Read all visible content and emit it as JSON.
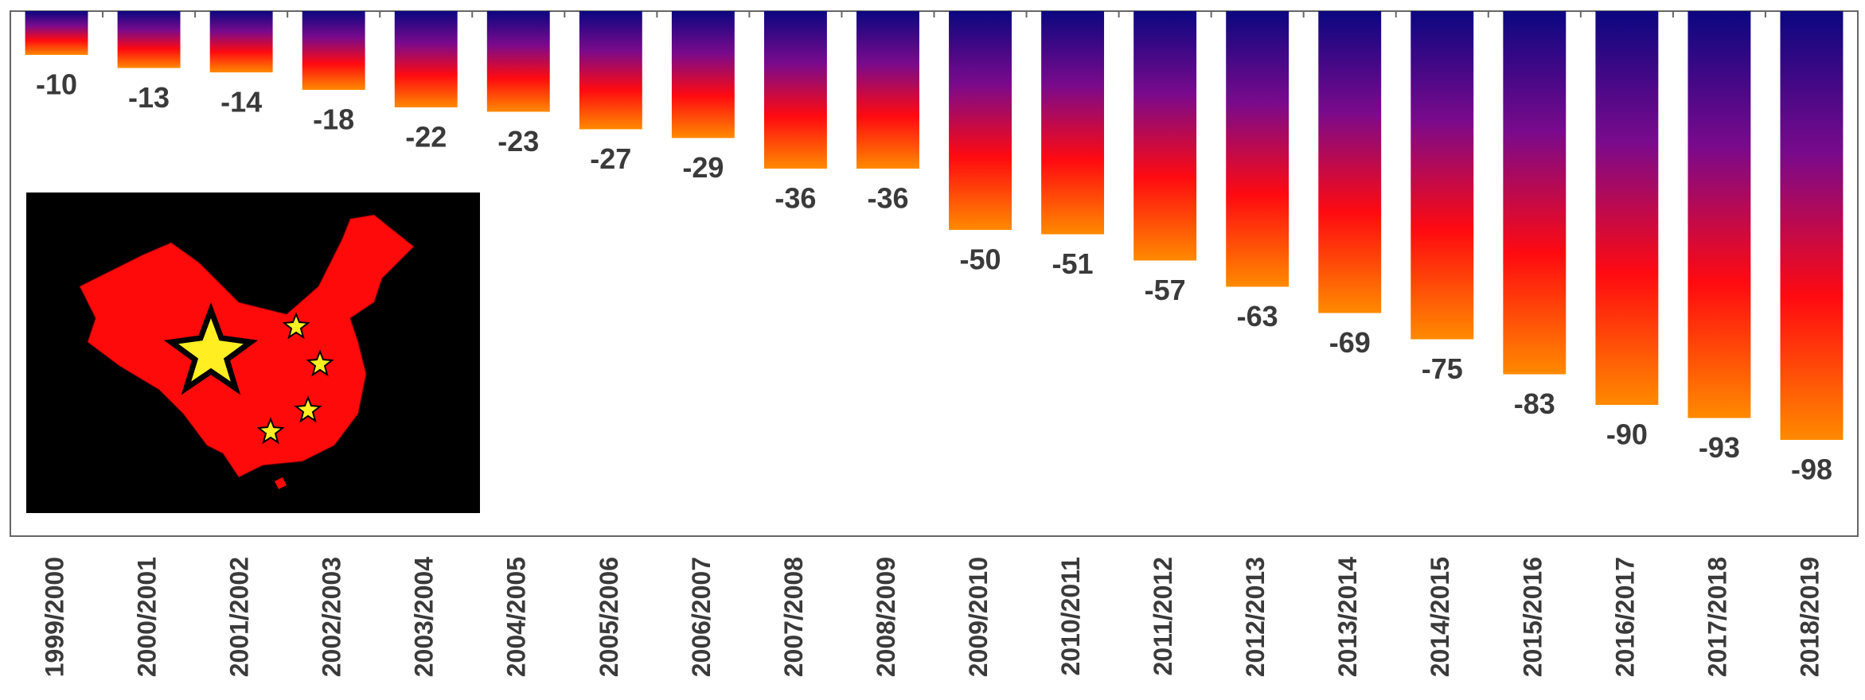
{
  "chart_data": {
    "type": "bar",
    "categories": [
      "1999/2000",
      "2000/2001",
      "2001/2002",
      "2002/2003",
      "2003/2004",
      "2004/2005",
      "2005/2006",
      "2006/2007",
      "2007/2008",
      "2008/2009",
      "2009/2010",
      "2010/2011",
      "2011/2012",
      "2012/2013",
      "2013/2014",
      "2014/2015",
      "2015/2016",
      "2016/2017",
      "2017/2018",
      "2018/2019"
    ],
    "values": [
      -10,
      -13,
      -14,
      -18,
      -22,
      -23,
      -27,
      -29,
      -36,
      -36,
      -50,
      -51,
      -57,
      -63,
      -69,
      -75,
      -83,
      -90,
      -93,
      -98
    ],
    "gradient": [
      "#0b0780",
      "#7a0a8c",
      "#ff0a10",
      "#ff8a00"
    ],
    "ylim": [
      -120,
      0
    ]
  }
}
